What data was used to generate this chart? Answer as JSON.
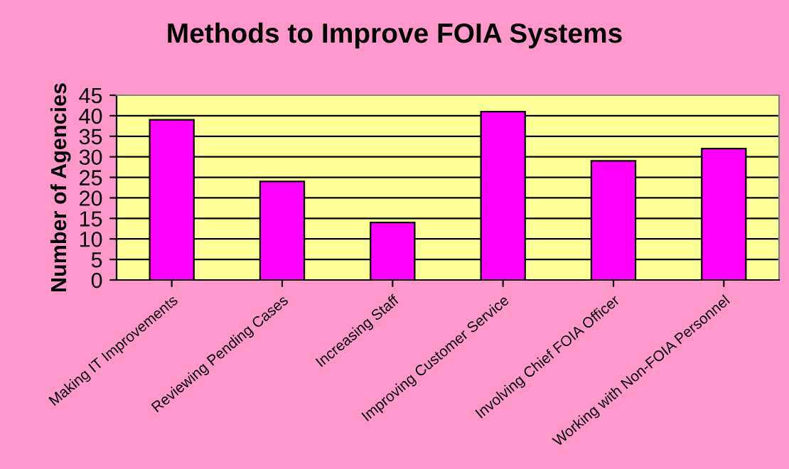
{
  "chart_data": {
    "type": "bar",
    "title": "Methods to Improve FOIA Systems",
    "ylabel": "Number of Agencies",
    "categories": [
      "Making IT Improvements",
      "Reviewing Pending Cases",
      "Increasing Staff",
      "Improving Customer Service",
      "Involving Chief FOIA Officer",
      "Working with Non-FOIA Personnel"
    ],
    "values": [
      39,
      24,
      14,
      41,
      29,
      32
    ],
    "color": "#ff00ff",
    "ylim": [
      0,
      45
    ],
    "yticks": [
      0,
      5,
      10,
      15,
      20,
      25,
      30,
      35,
      40,
      45
    ],
    "grid": "y",
    "legend": false
  }
}
